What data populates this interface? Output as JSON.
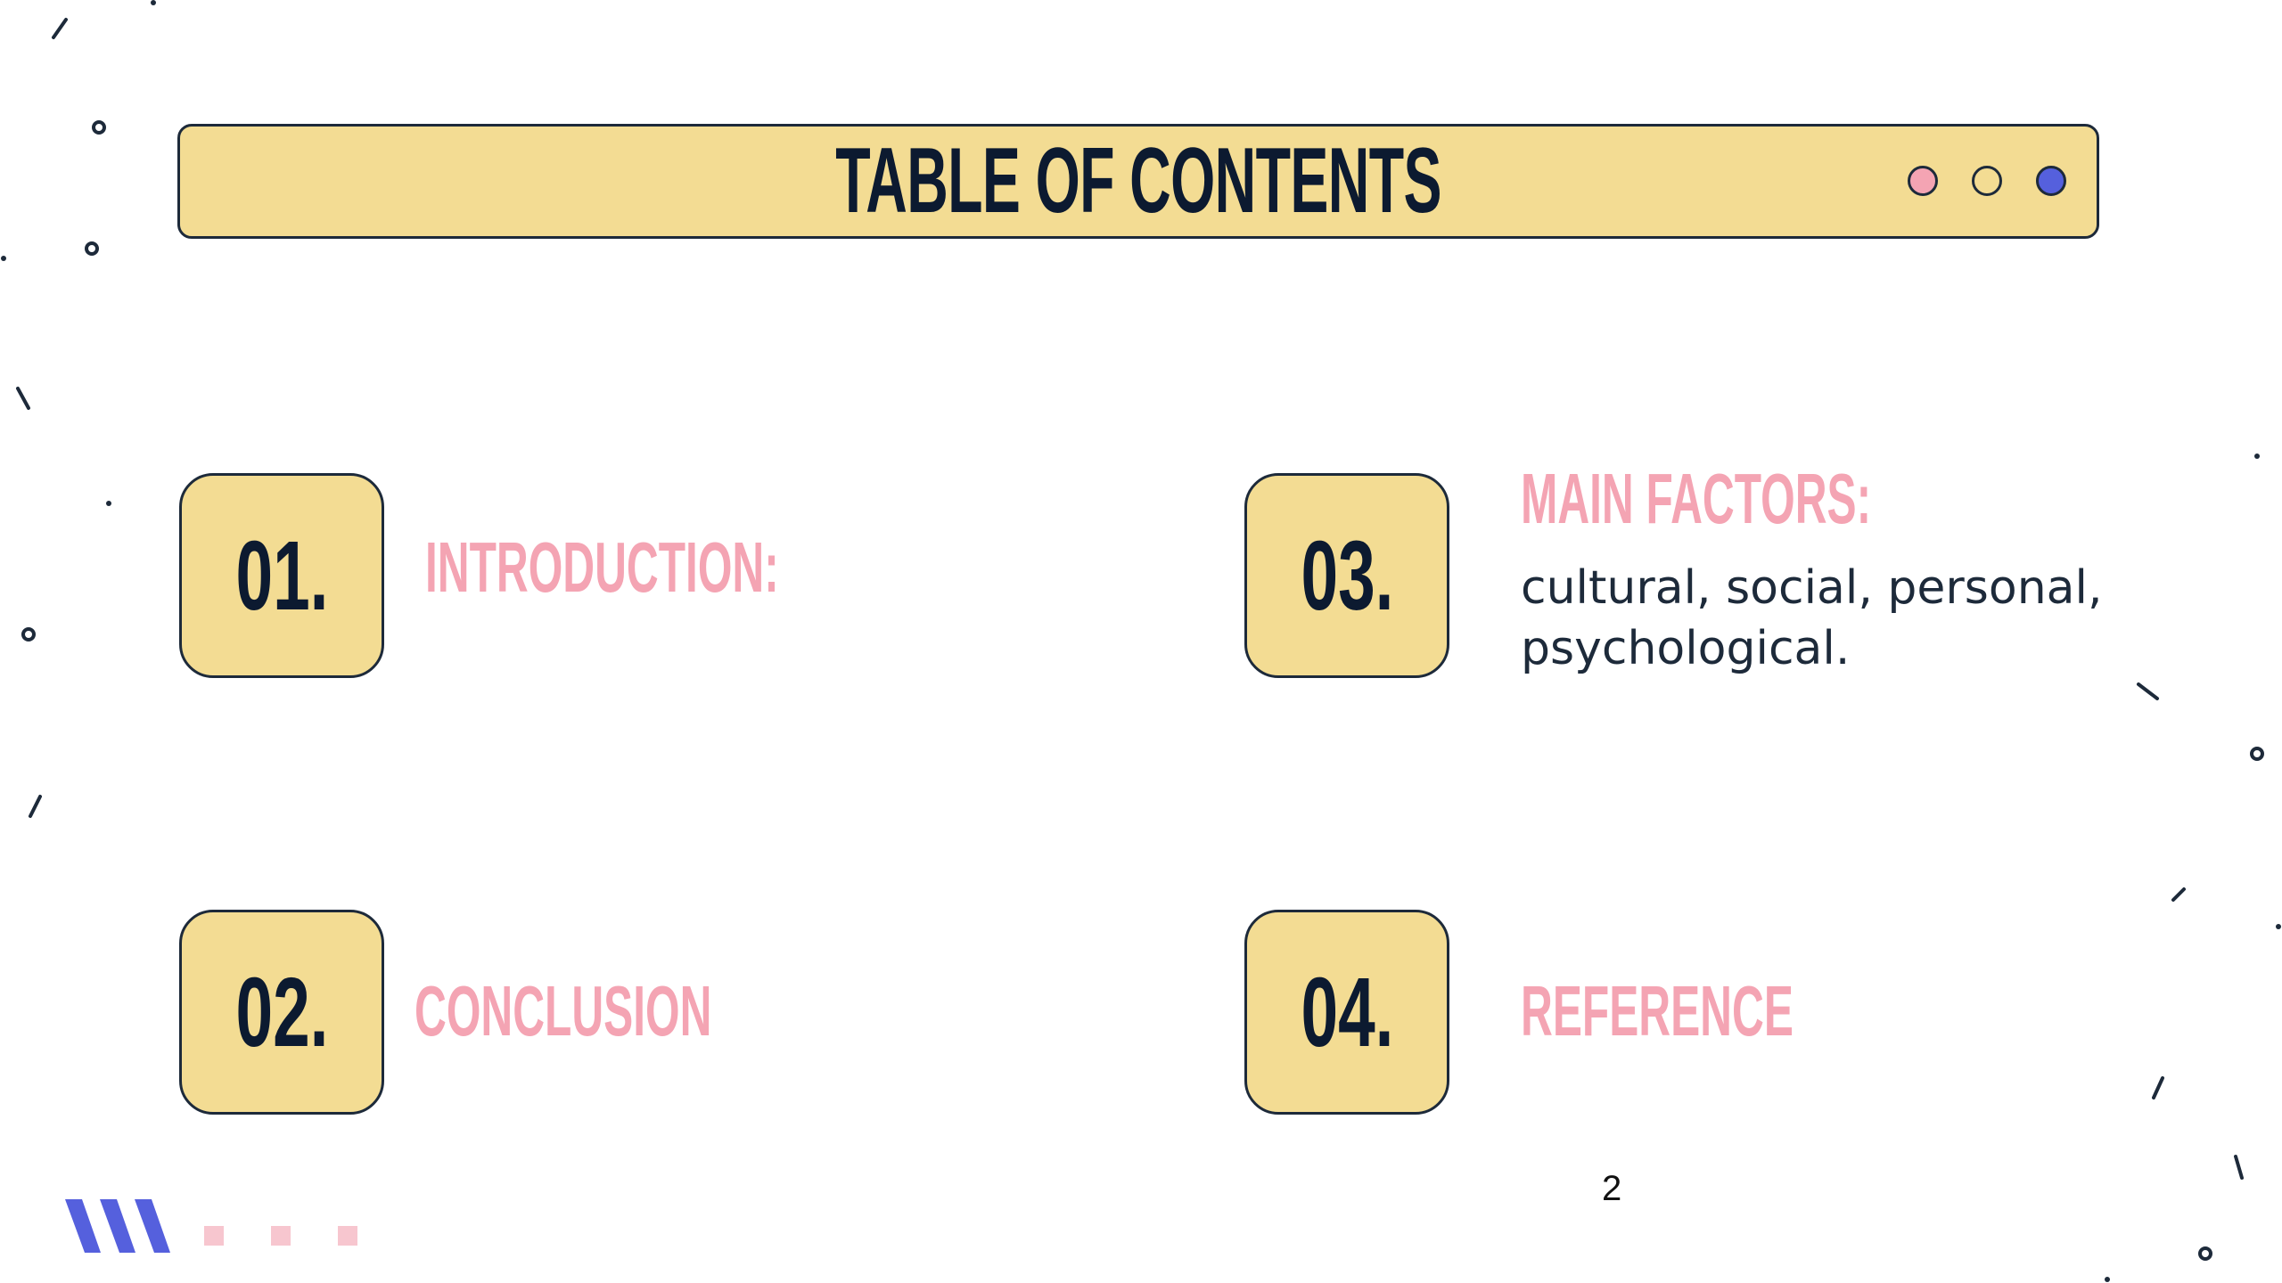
{
  "header": {
    "title": "TABLE OF CONTENTS",
    "window_dots": [
      "#f4a4b3",
      "#f3dc93",
      "#5560dd"
    ]
  },
  "sections": [
    {
      "number": "01.",
      "title": "INTRODUCTION:"
    },
    {
      "number": "02.",
      "title": "CONCLUSION"
    },
    {
      "number": "03.",
      "title": "MAIN FACTORS:",
      "description": "cultural, social, personal, psychological."
    },
    {
      "number": "04.",
      "title": "REFERENCE"
    }
  ],
  "page_number": "2",
  "colors": {
    "accent_yellow": "#f3dc93",
    "accent_pink": "#f4a4b3",
    "accent_blue": "#5560dd",
    "text_dark": "#0c1a30"
  }
}
